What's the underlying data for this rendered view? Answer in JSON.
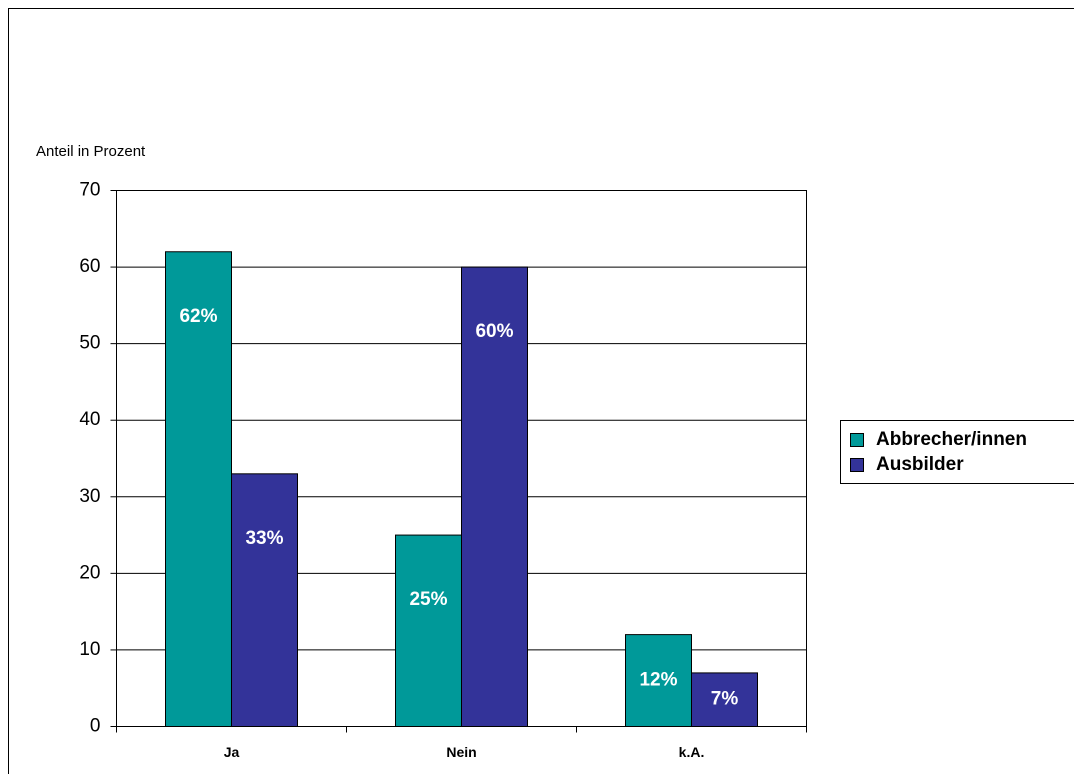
{
  "chart_data": {
    "type": "bar",
    "y_label": "Anteil in Prozent",
    "categories": [
      "Ja",
      "Nein",
      "k.A."
    ],
    "series": [
      {
        "name": "Abbrecher/innen",
        "color": "#009999",
        "values": [
          62,
          25,
          12
        ],
        "value_labels": [
          "62%",
          "25%",
          "12%"
        ]
      },
      {
        "name": "Ausbilder",
        "color": "#333399",
        "values": [
          33,
          60,
          7
        ],
        "value_labels": [
          "33%",
          "60%",
          "7%"
        ]
      }
    ],
    "ylim": [
      0,
      70
    ],
    "yticks": [
      0,
      10,
      20,
      30,
      40,
      50,
      60,
      70
    ],
    "grid": true,
    "legend": "right"
  }
}
